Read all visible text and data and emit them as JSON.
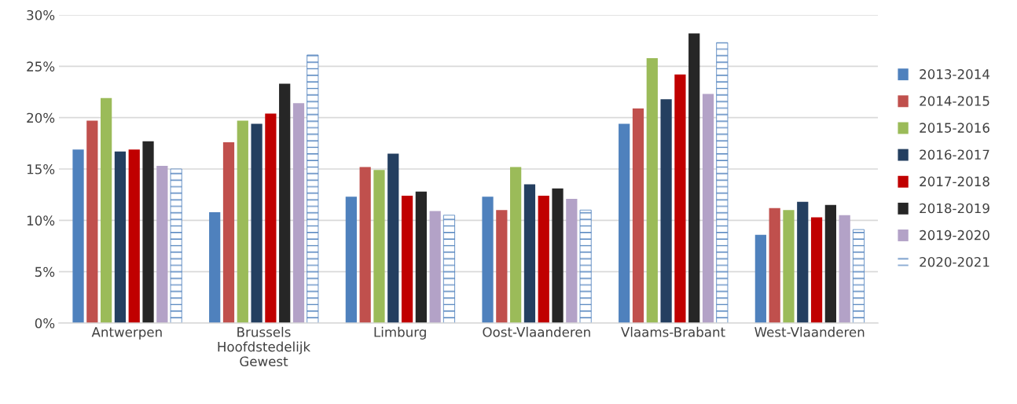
{
  "chart_data": {
    "type": "bar",
    "categories": [
      "Antwerpen",
      "Brussels\nHoofdstedelijk\nGewest",
      "Limburg",
      "Oost-Vlaanderen",
      "Vlaams-Brabant",
      "West-Vlaanderen"
    ],
    "series": [
      {
        "name": "2013-2014",
        "color": "#4f81bd",
        "values": [
          16.9,
          10.8,
          12.3,
          12.3,
          19.4,
          8.6
        ]
      },
      {
        "name": "2014-2015",
        "color": "#c0504d",
        "values": [
          19.7,
          17.6,
          15.2,
          11.0,
          20.9,
          11.2
        ]
      },
      {
        "name": "2015-2016",
        "color": "#9bbb59",
        "values": [
          21.9,
          19.7,
          14.9,
          15.2,
          25.8,
          11.0
        ]
      },
      {
        "name": "2016-2017",
        "color": "#243f60",
        "values": [
          16.7,
          19.4,
          16.5,
          13.5,
          21.8,
          11.8
        ]
      },
      {
        "name": "2017-2018",
        "color": "#c00000",
        "values": [
          16.9,
          20.4,
          12.4,
          12.4,
          24.2,
          10.3
        ]
      },
      {
        "name": "2018-2019",
        "color": "#262626",
        "values": [
          17.7,
          23.3,
          12.8,
          13.1,
          28.2,
          11.5
        ]
      },
      {
        "name": "2019-2020",
        "color": "#b3a2c7",
        "values": [
          15.3,
          21.4,
          10.9,
          12.1,
          22.3,
          10.5
        ]
      },
      {
        "name": "2020-2021",
        "color": "#4f81bd",
        "line_style": "dashed",
        "values": [
          15.0,
          26.1,
          10.5,
          11.0,
          27.3,
          9.1
        ]
      }
    ],
    "ylim": [
      0,
      30
    ],
    "yticks": [
      {
        "value": 0,
        "label": "0%"
      },
      {
        "value": 5,
        "label": "5%"
      },
      {
        "value": 10,
        "label": "10%"
      },
      {
        "value": 15,
        "label": "15%"
      },
      {
        "value": 20,
        "label": "20%"
      },
      {
        "value": 25,
        "label": "25%"
      },
      {
        "value": 30,
        "label": "30%"
      }
    ],
    "grid": "y",
    "legend": "right"
  }
}
